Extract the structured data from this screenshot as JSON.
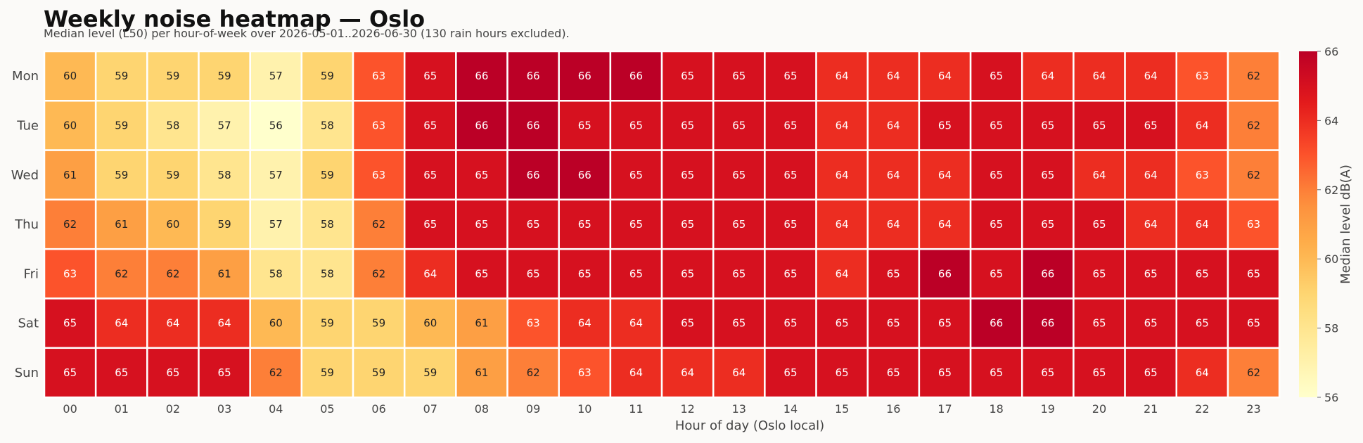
{
  "chart_data": {
    "type": "heatmap",
    "title": "Weekly noise heatmap — Oslo",
    "subtitle": "Median level (L50) per hour-of-week over 2026-05-01..2026-06-30 (130 rain hours excluded).",
    "xlabel": "Hour of day (Oslo local)",
    "ylabel": "",
    "x_categories": [
      "00",
      "01",
      "02",
      "03",
      "04",
      "05",
      "06",
      "07",
      "08",
      "09",
      "10",
      "11",
      "12",
      "13",
      "14",
      "15",
      "16",
      "17",
      "18",
      "19",
      "20",
      "21",
      "22",
      "23"
    ],
    "y_categories": [
      "Mon",
      "Tue",
      "Wed",
      "Thu",
      "Fri",
      "Sat",
      "Sun"
    ],
    "values": [
      [
        60,
        59,
        59,
        59,
        57,
        59,
        63,
        65,
        66,
        66,
        66,
        66,
        65,
        65,
        65,
        64,
        64,
        64,
        65,
        64,
        64,
        64,
        63,
        62
      ],
      [
        60,
        59,
        58,
        57,
        56,
        58,
        63,
        65,
        66,
        66,
        65,
        65,
        65,
        65,
        65,
        64,
        64,
        65,
        65,
        65,
        65,
        65,
        64,
        62
      ],
      [
        61,
        59,
        59,
        58,
        57,
        59,
        63,
        65,
        65,
        66,
        66,
        65,
        65,
        65,
        65,
        64,
        64,
        64,
        65,
        65,
        64,
        64,
        63,
        62
      ],
      [
        62,
        61,
        60,
        59,
        57,
        58,
        62,
        65,
        65,
        65,
        65,
        65,
        65,
        65,
        65,
        64,
        64,
        64,
        65,
        65,
        65,
        64,
        64,
        63
      ],
      [
        63,
        62,
        62,
        61,
        58,
        58,
        62,
        64,
        65,
        65,
        65,
        65,
        65,
        65,
        65,
        64,
        65,
        66,
        65,
        66,
        65,
        65,
        65,
        65
      ],
      [
        65,
        64,
        64,
        64,
        60,
        59,
        59,
        60,
        61,
        63,
        64,
        64,
        65,
        65,
        65,
        65,
        65,
        65,
        66,
        66,
        65,
        65,
        65,
        65
      ],
      [
        65,
        65,
        65,
        65,
        62,
        59,
        59,
        59,
        61,
        62,
        63,
        64,
        64,
        64,
        65,
        65,
        65,
        65,
        65,
        65,
        65,
        65,
        64,
        62
      ]
    ],
    "colorbar": {
      "label": "Median level  dB(A)",
      "range": [
        56,
        66
      ],
      "ticks": [
        56,
        58,
        60,
        62,
        64,
        66
      ],
      "colormap": "YlOrRd"
    }
  }
}
